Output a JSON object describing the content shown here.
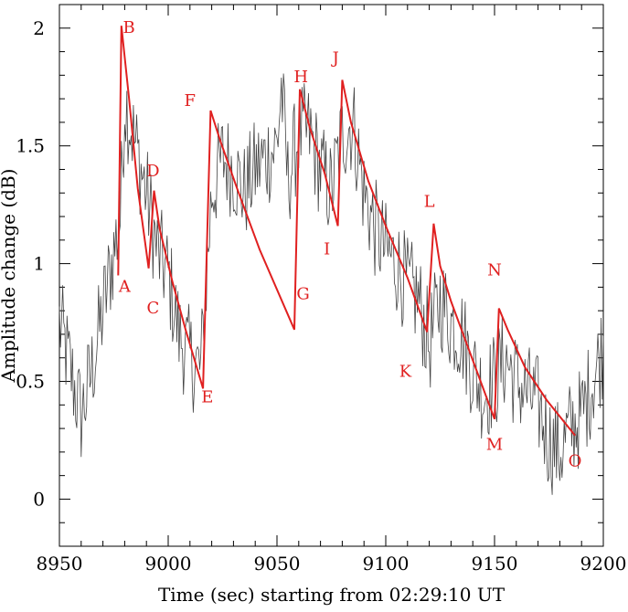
{
  "chart_data": {
    "type": "line",
    "title": "",
    "xlabel": "Time (sec) starting from 02:29:10 UT",
    "ylabel": "Amplitude change (dB)",
    "xlim": [
      8950,
      9200
    ],
    "ylim": [
      -0.2,
      2.1
    ],
    "xticks": [
      8950,
      9000,
      9050,
      9100,
      9150,
      9200
    ],
    "yticks": [
      0,
      0.5,
      1,
      1.5,
      2
    ],
    "xtick_labels": [
      "8950",
      "9000",
      "9050",
      "9100",
      "9150",
      "9200"
    ],
    "ytick_labels": [
      "0",
      "0.5",
      "1",
      "1.5",
      "2"
    ],
    "grid": false,
    "series": [
      {
        "color": "#444444",
        "description_free": true,
        "anchor_x": [
          8950,
          8955,
          8960,
          8965,
          8970,
          8975,
          8978,
          8980,
          8985,
          8990,
          8995,
          9000,
          9005,
          9010,
          9015,
          9020,
          9025,
          9030,
          9035,
          9040,
          9045,
          9050,
          9052,
          9055,
          9060,
          9065,
          9070,
          9075,
          9080,
          9085,
          9090,
          9095,
          9100,
          9105,
          9110,
          9115,
          9120,
          9125,
          9130,
          9135,
          9140,
          9145,
          9150,
          9155,
          9160,
          9165,
          9170,
          9175,
          9180,
          9185,
          9190,
          9195,
          9200
        ],
        "anchor_y": [
          0.75,
          0.55,
          0.35,
          0.55,
          0.8,
          1.05,
          1.2,
          1.7,
          1.5,
          1.3,
          1.05,
          0.95,
          0.7,
          0.6,
          0.55,
          1.3,
          1.45,
          1.4,
          1.3,
          1.4,
          1.45,
          1.5,
          1.75,
          1.35,
          1.55,
          1.55,
          1.4,
          1.3,
          1.55,
          1.6,
          1.3,
          1.15,
          1.05,
          1.0,
          0.9,
          0.85,
          0.65,
          0.85,
          0.75,
          0.7,
          0.55,
          0.45,
          0.5,
          0.6,
          0.5,
          0.45,
          0.4,
          0.25,
          0.2,
          0.3,
          0.35,
          0.5,
          0.65
        ],
        "noise_amplitude": 0.22
      },
      {
        "color": "#e02020",
        "x": [
          8977,
          8978.5,
          8982,
          8986,
          8991,
          8993.5,
          8996,
          9002,
          9008,
          9016,
          9019.5,
          9024,
          9032,
          9042,
          9058,
          9060.5,
          9065,
          9072,
          9078,
          9080,
          9084,
          9092,
          9100,
          9110,
          9119,
          9122,
          9125,
          9130,
          9138,
          9150,
          9152,
          9156,
          9164,
          9174,
          9187
        ],
        "y": [
          0.95,
          2.01,
          1.7,
          1.32,
          0.98,
          1.31,
          1.15,
          0.92,
          0.72,
          0.47,
          1.65,
          1.52,
          1.31,
          1.06,
          0.72,
          1.74,
          1.58,
          1.38,
          1.16,
          1.78,
          1.6,
          1.35,
          1.16,
          0.94,
          0.71,
          1.17,
          0.99,
          0.84,
          0.64,
          0.34,
          0.81,
          0.72,
          0.56,
          0.42,
          0.27
        ]
      }
    ],
    "annotations": [
      {
        "text": "A",
        "x": 8980,
        "y": 0.88
      },
      {
        "text": "B",
        "x": 8982,
        "y": 1.98
      },
      {
        "text": "C",
        "x": 8993,
        "y": 0.79
      },
      {
        "text": "D",
        "x": 8993,
        "y": 1.37
      },
      {
        "text": "E",
        "x": 9018,
        "y": 0.41
      },
      {
        "text": "F",
        "x": 9010,
        "y": 1.67
      },
      {
        "text": "G",
        "x": 9062,
        "y": 0.85
      },
      {
        "text": "H",
        "x": 9061,
        "y": 1.77
      },
      {
        "text": "I",
        "x": 9073,
        "y": 1.04
      },
      {
        "text": "J",
        "x": 9077,
        "y": 1.85
      },
      {
        "text": "K",
        "x": 9109,
        "y": 0.52
      },
      {
        "text": "L",
        "x": 9120,
        "y": 1.24
      },
      {
        "text": "M",
        "x": 9150,
        "y": 0.21
      },
      {
        "text": "N",
        "x": 9150,
        "y": 0.95
      },
      {
        "text": "O",
        "x": 9187,
        "y": 0.14
      }
    ]
  }
}
